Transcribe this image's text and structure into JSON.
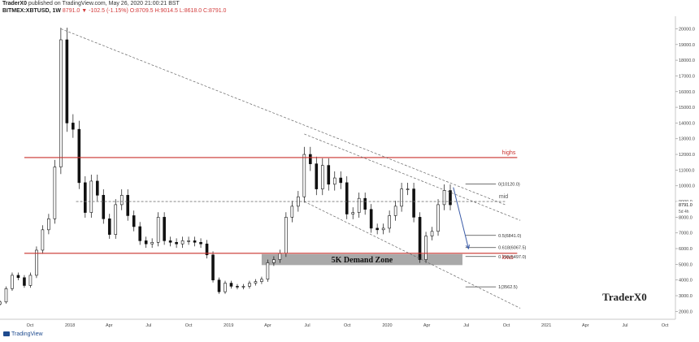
{
  "header": {
    "author": "TraderX0",
    "published": "published on TradingView.com, May 26, 2020 21:00:21 BST",
    "symbol": "BITMEX:XBTUSD, 1W",
    "last": "8791.0",
    "change": "▼ -102.5 (-1.15%)",
    "ohlc": "O:8709.5 H:9014.5 L:8618.0 C:8791.0"
  },
  "footer": {
    "brand": "TradingView"
  },
  "chart_data": {
    "type": "candlestick",
    "y_axis": {
      "ylim": [
        1500,
        20800
      ],
      "ticks": [
        2000,
        3000,
        4000,
        5000,
        6000,
        7000,
        8000,
        9000,
        10000,
        11000,
        12000,
        13000,
        14000,
        15000,
        16000,
        17000,
        18000,
        19000,
        20000
      ],
      "tick_labels": [
        "2000.0",
        "3000.0",
        "4000.0",
        "5000.0",
        "6000.0",
        "7000.0",
        "8000.0",
        "9000.0",
        "10000.0",
        "11000.0",
        "12000.0",
        "13000.0",
        "14000.0",
        "15000.0",
        "16000.0",
        "17000.0",
        "18000.0",
        "19000.0",
        "20000.0"
      ],
      "last_price_label": "8791.0",
      "countdown_label": "5d 4h"
    },
    "x_axis": {
      "range": [
        "2017-07-24",
        "2021-10-25"
      ],
      "ticks": [
        {
          "date": "2017-10-01",
          "label": "Oct"
        },
        {
          "date": "2018-01-01",
          "label": "2018"
        },
        {
          "date": "2018-04-01",
          "label": "Apr"
        },
        {
          "date": "2018-07-01",
          "label": "Jul"
        },
        {
          "date": "2018-10-01",
          "label": "Oct"
        },
        {
          "date": "2019-01-01",
          "label": "2019"
        },
        {
          "date": "2019-04-01",
          "label": "Apr"
        },
        {
          "date": "2019-07-01",
          "label": "Jul"
        },
        {
          "date": "2019-10-01",
          "label": "Oct"
        },
        {
          "date": "2020-01-01",
          "label": "2020"
        },
        {
          "date": "2020-04-01",
          "label": "Apr"
        },
        {
          "date": "2020-07-01",
          "label": "Jul"
        },
        {
          "date": "2020-10-01",
          "label": "Oct"
        },
        {
          "date": "2021-01-01",
          "label": "2021"
        },
        {
          "date": "2021-04-01",
          "label": "Apr"
        },
        {
          "date": "2021-07-01",
          "label": "Jul"
        },
        {
          "date": "2021-10-01",
          "label": "Oct"
        }
      ]
    },
    "series": [
      {
        "date": "2017-07-24",
        "c": 2600
      },
      {
        "date": "2017-08-07",
        "c": 3450
      },
      {
        "date": "2017-08-21",
        "c": 4300
      },
      {
        "date": "2017-09-04",
        "c": 4150
      },
      {
        "date": "2017-09-18",
        "c": 3650
      },
      {
        "date": "2017-10-02",
        "c": 4300
      },
      {
        "date": "2017-10-16",
        "c": 5900
      },
      {
        "date": "2017-10-30",
        "c": 7200
      },
      {
        "date": "2017-11-13",
        "c": 7900
      },
      {
        "date": "2017-11-27",
        "c": 11200
      },
      {
        "date": "2017-12-11",
        "c": 19300
      },
      {
        "date": "2017-12-25",
        "c": 14000
      },
      {
        "date": "2018-01-08",
        "c": 13600
      },
      {
        "date": "2018-01-22",
        "c": 10200
      },
      {
        "date": "2018-02-05",
        "c": 8300
      },
      {
        "date": "2018-02-19",
        "c": 10300
      },
      {
        "date": "2018-03-05",
        "c": 9400
      },
      {
        "date": "2018-03-19",
        "c": 7900
      },
      {
        "date": "2018-04-02",
        "c": 6900
      },
      {
        "date": "2018-04-16",
        "c": 8800
      },
      {
        "date": "2018-04-30",
        "c": 9400
      },
      {
        "date": "2018-05-14",
        "c": 8100
      },
      {
        "date": "2018-05-28",
        "c": 7400
      },
      {
        "date": "2018-06-11",
        "c": 6500
      },
      {
        "date": "2018-06-25",
        "c": 6300
      },
      {
        "date": "2018-07-09",
        "c": 6400
      },
      {
        "date": "2018-07-23",
        "c": 8000
      },
      {
        "date": "2018-08-06",
        "c": 6500
      },
      {
        "date": "2018-08-20",
        "c": 6400
      },
      {
        "date": "2018-09-03",
        "c": 6300
      },
      {
        "date": "2018-09-17",
        "c": 6500
      },
      {
        "date": "2018-10-01",
        "c": 6500
      },
      {
        "date": "2018-10-15",
        "c": 6400
      },
      {
        "date": "2018-10-29",
        "c": 6300
      },
      {
        "date": "2018-11-12",
        "c": 5600
      },
      {
        "date": "2018-11-26",
        "c": 4000
      },
      {
        "date": "2018-12-10",
        "c": 3250
      },
      {
        "date": "2018-12-24",
        "c": 3800
      },
      {
        "date": "2019-01-07",
        "c": 3600
      },
      {
        "date": "2019-01-21",
        "c": 3550
      },
      {
        "date": "2019-02-04",
        "c": 3600
      },
      {
        "date": "2019-02-18",
        "c": 3800
      },
      {
        "date": "2019-03-04",
        "c": 3900
      },
      {
        "date": "2019-03-18",
        "c": 4050
      },
      {
        "date": "2019-04-01",
        "c": 5100
      },
      {
        "date": "2019-04-15",
        "c": 5300
      },
      {
        "date": "2019-04-29",
        "c": 5700
      },
      {
        "date": "2019-05-13",
        "c": 8000
      },
      {
        "date": "2019-05-27",
        "c": 8700
      },
      {
        "date": "2019-06-10",
        "c": 9300
      },
      {
        "date": "2019-06-24",
        "c": 12000
      },
      {
        "date": "2019-07-08",
        "c": 11400
      },
      {
        "date": "2019-07-22",
        "c": 9800
      },
      {
        "date": "2019-08-05",
        "c": 11300
      },
      {
        "date": "2019-08-19",
        "c": 10100
      },
      {
        "date": "2019-09-02",
        "c": 10500
      },
      {
        "date": "2019-09-16",
        "c": 10200
      },
      {
        "date": "2019-09-30",
        "c": 8200
      },
      {
        "date": "2019-10-14",
        "c": 8300
      },
      {
        "date": "2019-10-28",
        "c": 9200
      },
      {
        "date": "2019-11-11",
        "c": 8500
      },
      {
        "date": "2019-11-25",
        "c": 7300
      },
      {
        "date": "2019-12-09",
        "c": 7200
      },
      {
        "date": "2019-12-23",
        "c": 7300
      },
      {
        "date": "2020-01-06",
        "c": 8100
      },
      {
        "date": "2020-01-20",
        "c": 8700
      },
      {
        "date": "2020-02-03",
        "c": 9800
      },
      {
        "date": "2020-02-17",
        "c": 9800
      },
      {
        "date": "2020-03-02",
        "c": 8000
      },
      {
        "date": "2020-03-16",
        "c": 5300
      },
      {
        "date": "2020-03-30",
        "c": 6800
      },
      {
        "date": "2020-04-13",
        "c": 7100
      },
      {
        "date": "2020-04-27",
        "c": 8800
      },
      {
        "date": "2020-05-11",
        "c": 9700
      },
      {
        "date": "2020-05-25",
        "c": 8791
      }
    ],
    "lines": [
      {
        "kind": "horizontal",
        "label": "highs",
        "y": 11800
      },
      {
        "kind": "horizontal",
        "label": "lows",
        "y": 5700
      },
      {
        "kind": "horizontal_dashed",
        "label": "mid",
        "y": 9000
      }
    ],
    "trendlines": [
      {
        "from": {
          "date": "2017-12-11",
          "y": 20000
        },
        "to": {
          "date": "2020-09-28",
          "y": 8800
        }
      },
      {
        "from": {
          "date": "2019-06-24",
          "y": 13300
        },
        "to": {
          "date": "2020-11-02",
          "y": 7800
        }
      },
      {
        "from": {
          "date": "2019-06-24",
          "y": 9000
        },
        "to": {
          "date": "2020-11-02",
          "y": 2200
        }
      }
    ],
    "zones": [
      {
        "label": "5K Demand Zone",
        "from": "2019-03-18",
        "to": "2020-06-22",
        "y_from": 4950,
        "y_to": 5650
      }
    ],
    "fib_levels": [
      {
        "label": "0(10120.0)",
        "y": 10120
      },
      {
        "label": "0.5(6841.0)",
        "y": 6841
      },
      {
        "label": "0.618(6067.5)",
        "y": 6067.5
      },
      {
        "label": "0.705(5497.0)",
        "y": 5497
      },
      {
        "label": "1(3562.5)",
        "y": 3562.5
      }
    ],
    "arrow": {
      "from": {
        "date": "2020-06-01",
        "y": 9900
      },
      "to": {
        "date": "2020-07-06",
        "y": 6000
      }
    },
    "watermark": "TraderX0"
  }
}
